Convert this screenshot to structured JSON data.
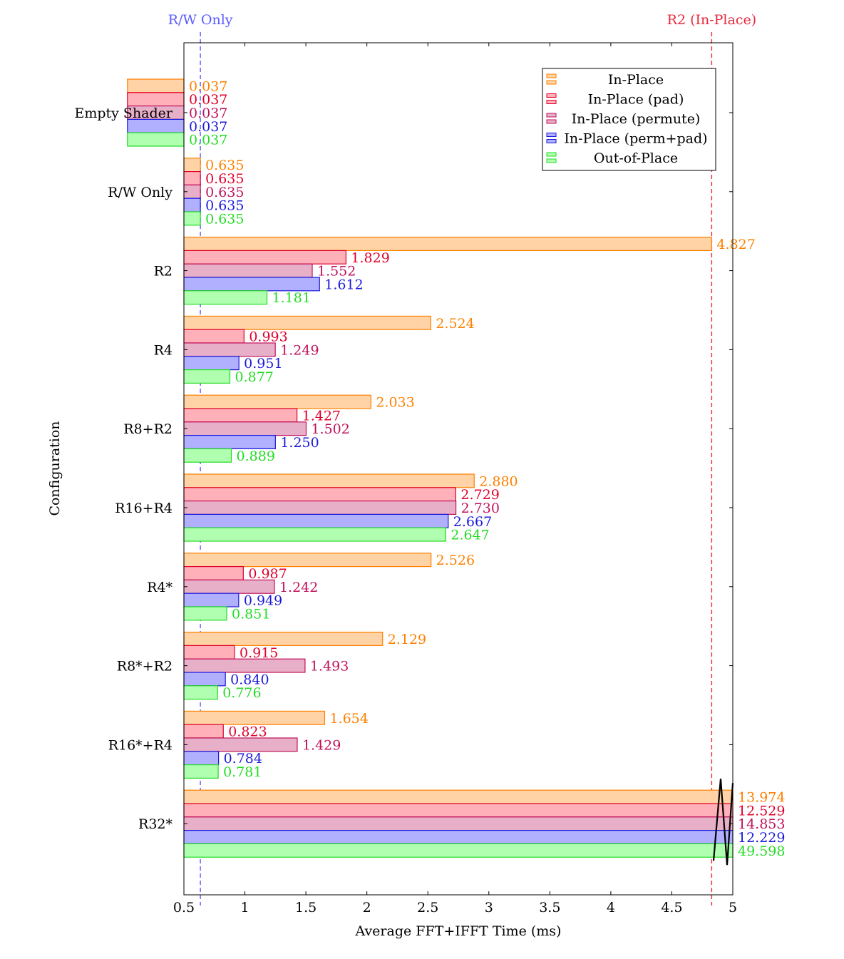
{
  "chart_data": {
    "type": "bar",
    "orientation": "horizontal",
    "xlabel": "Average FFT+IFFT Time (ms)",
    "ylabel": "Configuration",
    "xlim": [
      0.5,
      5
    ],
    "xticks": [
      "0.5",
      "1",
      "1.5",
      "2",
      "2.5",
      "3",
      "3.5",
      "4",
      "4.5",
      "5"
    ],
    "categories": [
      "Empty Shader",
      "R/W Only",
      "R2",
      "R4",
      "R8+R2",
      "R16+R4",
      "R4*",
      "R8*+R2",
      "R16*+R4",
      "R32*"
    ],
    "series": [
      {
        "name": "In-Place",
        "color": "#ff8000",
        "fill": "#ffd3a6",
        "values": [
          0.037,
          0.635,
          4.827,
          2.524,
          2.033,
          2.88,
          2.526,
          2.129,
          1.654,
          13.974
        ],
        "labels": [
          "0.037",
          "0.635",
          "4.827",
          "2.524",
          "2.033",
          "2.880",
          "2.526",
          "2.129",
          "1.654",
          "13.974"
        ]
      },
      {
        "name": "In-Place (pad)",
        "color": "#e0002a",
        "fill": "#ffb0b8",
        "values": [
          0.037,
          0.635,
          1.829,
          0.993,
          1.427,
          2.729,
          0.987,
          0.915,
          0.823,
          12.529
        ],
        "labels": [
          "0.037",
          "0.635",
          "1.829",
          "0.993",
          "1.427",
          "2.729",
          "0.987",
          "0.915",
          "0.823",
          "12.529"
        ]
      },
      {
        "name": "In-Place (permute)",
        "color": "#c0105a",
        "fill": "#e8b0c8",
        "values": [
          0.037,
          0.635,
          1.552,
          1.249,
          1.502,
          2.73,
          1.242,
          1.493,
          1.429,
          14.853
        ],
        "labels": [
          "0.037",
          "0.635",
          "1.552",
          "1.249",
          "1.502",
          "2.730",
          "1.242",
          "1.493",
          "1.429",
          "14.853"
        ]
      },
      {
        "name": "In-Place (perm+pad)",
        "color": "#1a1adb",
        "fill": "#b0b0ff",
        "values": [
          0.037,
          0.635,
          1.612,
          0.951,
          1.25,
          2.667,
          0.949,
          0.84,
          0.784,
          12.229
        ],
        "labels": [
          "0.037",
          "0.635",
          "1.612",
          "0.951",
          "1.250",
          "2.667",
          "0.949",
          "0.840",
          "0.784",
          "12.229"
        ]
      },
      {
        "name": "Out-of-Place",
        "color": "#22dd22",
        "fill": "#b0ffb0",
        "values": [
          0.037,
          0.635,
          1.181,
          0.877,
          0.889,
          2.647,
          0.851,
          0.776,
          0.781,
          49.598
        ],
        "labels": [
          "0.037",
          "0.635",
          "1.181",
          "0.877",
          "0.889",
          "2.647",
          "0.851",
          "0.776",
          "0.781",
          "49.598"
        ]
      }
    ],
    "reference_lines": [
      {
        "label": "R/W Only",
        "value": 0.635,
        "color": "#5b5bff"
      },
      {
        "label": "R2 (In-Place)",
        "value": 4.827,
        "color": "#e8283c"
      }
    ],
    "legend": {
      "placement": "top-right"
    },
    "axis_break": "R32*"
  }
}
